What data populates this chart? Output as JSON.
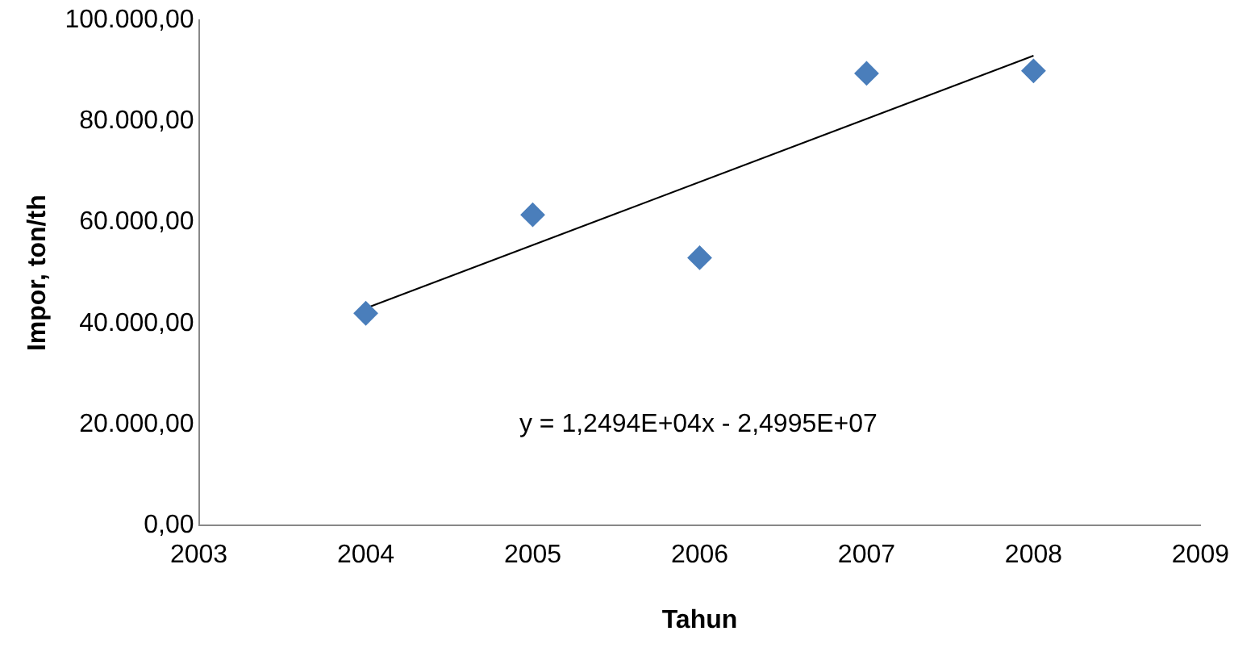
{
  "chart_data": {
    "type": "scatter",
    "xlabel": "Tahun",
    "ylabel": "Impor, ton/th",
    "x": [
      2004,
      2005,
      2006,
      2007,
      2008
    ],
    "series": [
      {
        "color": "#4a7ebb",
        "marker": "diamond",
        "values": [
          42000,
          61500,
          53000,
          89500,
          90000
        ]
      },
      {
        "type": "line",
        "color": "#000000",
        "x": [
          2004,
          2008
        ],
        "marker": "none",
        "values": [
          43000,
          93000
        ]
      }
    ],
    "xlim": [
      2003,
      2009
    ],
    "xticks": [
      2003,
      2004,
      2005,
      2006,
      2007,
      2008,
      2009
    ],
    "ylim": [
      0,
      100000
    ],
    "yticks": [
      {
        "value": 0,
        "label": "0,00"
      },
      {
        "value": 20000,
        "label": "20.000,00"
      },
      {
        "value": 40000,
        "label": "40.000,00"
      },
      {
        "value": 60000,
        "label": "60.000,00"
      },
      {
        "value": 80000,
        "label": "80.000,00"
      },
      {
        "value": 100000,
        "label": "100.000,00"
      }
    ],
    "annotations": [
      "y = 1,2494E+04x - 2,4995E+07"
    ],
    "grid": false,
    "legend": false,
    "line_style": "solid"
  }
}
